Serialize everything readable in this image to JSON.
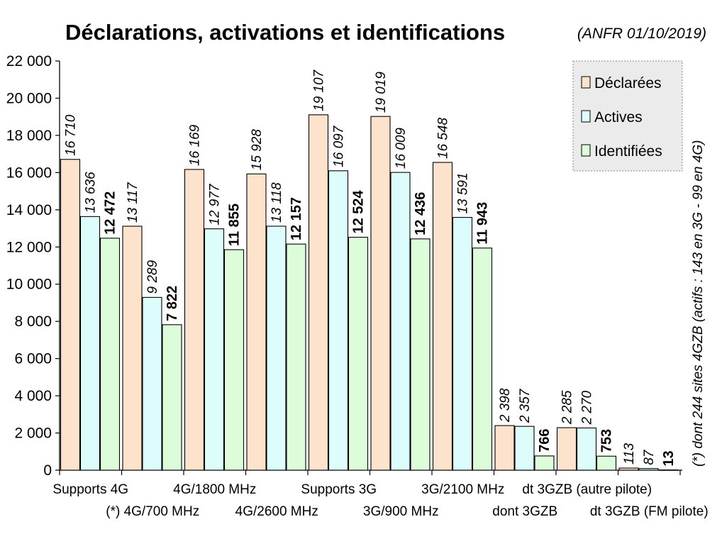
{
  "chart_data": {
    "type": "bar",
    "title": "Déclarations, activations et identifications",
    "subtitle": "(ANFR 01/10/2019)",
    "note": "(*) dont 244 sites 4GZB (actifs : 143 en 3G - 99 en 4G)",
    "categories": [
      "Supports 4G",
      "(*) 4G/700 MHz",
      "4G/1800 MHz",
      "4G/2600 MHz",
      "Supports 3G",
      "3G/900 MHz",
      "3G/2100 MHz",
      "dont 3GZB",
      "dt 3GZB (autre pilote)",
      "dt 3GZB (FM pilote)"
    ],
    "series": [
      {
        "name": "Déclarées",
        "color": "#fde2cc",
        "values": [
          16710,
          13117,
          16169,
          15928,
          19107,
          19019,
          16548,
          2398,
          2285,
          113
        ],
        "labels": [
          "16 710",
          "13 117",
          "16 169",
          "15 928",
          "19 107",
          "19 019",
          "16 548",
          "2 398",
          "2 285",
          "113"
        ]
      },
      {
        "name": "Actives",
        "color": "#dcfdfb",
        "values": [
          13636,
          9289,
          12977,
          13118,
          16097,
          16009,
          13591,
          2357,
          2270,
          87
        ],
        "labels": [
          "13 636",
          "9 289",
          "12 977",
          "13 118",
          "16 097",
          "16 009",
          "13 591",
          "2 357",
          "2 270",
          "87"
        ]
      },
      {
        "name": "Identifiées",
        "color": "#dcfcda",
        "values": [
          12472,
          7822,
          11855,
          12157,
          12524,
          12436,
          11943,
          766,
          753,
          13
        ],
        "labels": [
          "12 472",
          "7 822",
          "11 855",
          "12 157",
          "12 524",
          "12 436",
          "11 943",
          "766",
          "753",
          "13"
        ]
      }
    ],
    "ylim": [
      0,
      22000
    ],
    "yticks": [
      0,
      2000,
      4000,
      6000,
      8000,
      10000,
      12000,
      14000,
      16000,
      18000,
      20000,
      22000
    ],
    "ytick_labels": [
      "0",
      "2 000",
      "4 000",
      "6 000",
      "8 000",
      "10 000",
      "12 000",
      "14 000",
      "16 000",
      "18 000",
      "20 000",
      "22 000"
    ],
    "legend_position": "top-right",
    "grid": false
  }
}
